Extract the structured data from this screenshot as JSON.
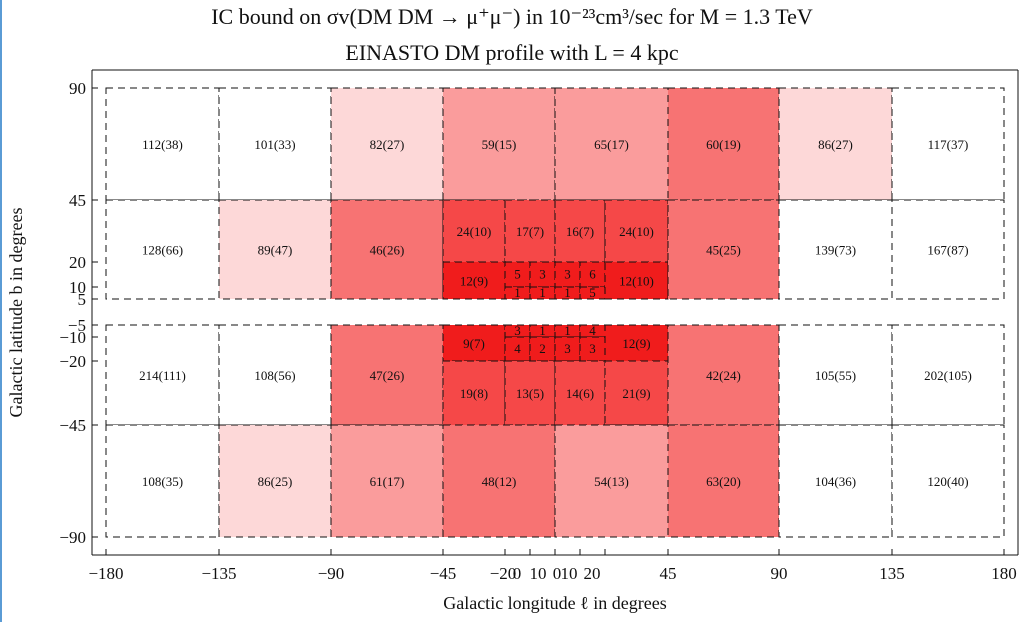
{
  "chart_data": {
    "type": "heatmap",
    "title": "IC bound on σv(DM DM → μ⁺μ⁻) in 10⁻²³cm³/sec for M = 1.3 TeV",
    "subtitle": "EINASTO DM profile with L = 4 kpc",
    "xlabel": "Galactic longitude ℓ in degrees",
    "ylabel": "Galactic latitude b in degrees",
    "x_ticks": [
      "−180",
      "−135",
      "−90",
      "−45",
      "−20",
      "0",
      "10",
      "0",
      "10",
      "20",
      "45",
      "90",
      "135",
      "180"
    ],
    "y_ticks": [
      "90",
      "45",
      "20",
      "10",
      "5",
      "−5",
      "−10",
      "−20",
      "−45",
      "−90"
    ],
    "colors": {
      "level0": "#ffffff",
      "level1": "#fdd8d8",
      "level2": "#fa9c9c",
      "level3": "#f77373",
      "level4": "#f54848",
      "level5": "#f01c1c",
      "grid": "#111111"
    },
    "cells": [
      {
        "l": [
          -180,
          -135
        ],
        "b": [
          45,
          90
        ],
        "label": "112(38)",
        "level": 0
      },
      {
        "l": [
          -135,
          -90
        ],
        "b": [
          45,
          90
        ],
        "label": "101(33)",
        "level": 0
      },
      {
        "l": [
          -90,
          -45
        ],
        "b": [
          45,
          90
        ],
        "label": "82(27)",
        "level": 1
      },
      {
        "l": [
          -45,
          0
        ],
        "b": [
          45,
          90
        ],
        "label": "59(15)",
        "level": 2
      },
      {
        "l": [
          0,
          45
        ],
        "b": [
          45,
          90
        ],
        "label": "65(17)",
        "level": 2
      },
      {
        "l": [
          45,
          90
        ],
        "b": [
          45,
          90
        ],
        "label": "60(19)",
        "level": 3
      },
      {
        "l": [
          90,
          135
        ],
        "b": [
          45,
          90
        ],
        "label": "86(27)",
        "level": 1
      },
      {
        "l": [
          135,
          180
        ],
        "b": [
          45,
          90
        ],
        "label": "117(37)",
        "level": 0
      },
      {
        "l": [
          -180,
          -135
        ],
        "b": [
          5,
          45
        ],
        "label": "128(66)",
        "level": 0
      },
      {
        "l": [
          -135,
          -90
        ],
        "b": [
          5,
          45
        ],
        "label": "89(47)",
        "level": 1
      },
      {
        "l": [
          -90,
          -45
        ],
        "b": [
          5,
          45
        ],
        "label": "46(26)",
        "level": 3
      },
      {
        "l": [
          -45,
          -20
        ],
        "b": [
          20,
          45
        ],
        "label": "24(10)",
        "level": 4
      },
      {
        "l": [
          -20,
          0
        ],
        "b": [
          20,
          45
        ],
        "label": "17(7)",
        "level": 4
      },
      {
        "l": [
          0,
          20
        ],
        "b": [
          20,
          45
        ],
        "label": "16(7)",
        "level": 4
      },
      {
        "l": [
          20,
          45
        ],
        "b": [
          20,
          45
        ],
        "label": "24(10)",
        "level": 4
      },
      {
        "l": [
          -45,
          -20
        ],
        "b": [
          5,
          20
        ],
        "label": "12(9)",
        "level": 5
      },
      {
        "l": [
          -20,
          -10
        ],
        "b": [
          10,
          20
        ],
        "label": "5",
        "level": 5
      },
      {
        "l": [
          -10,
          0
        ],
        "b": [
          10,
          20
        ],
        "label": "3",
        "level": 5
      },
      {
        "l": [
          0,
          10
        ],
        "b": [
          10,
          20
        ],
        "label": "3",
        "level": 5
      },
      {
        "l": [
          10,
          20
        ],
        "b": [
          10,
          20
        ],
        "label": "6",
        "level": 5
      },
      {
        "l": [
          -20,
          -10
        ],
        "b": [
          5,
          10
        ],
        "label": "1",
        "level": 5
      },
      {
        "l": [
          -10,
          0
        ],
        "b": [
          5,
          10
        ],
        "label": "1",
        "level": 5
      },
      {
        "l": [
          0,
          10
        ],
        "b": [
          5,
          10
        ],
        "label": "1",
        "level": 5
      },
      {
        "l": [
          10,
          20
        ],
        "b": [
          5,
          10
        ],
        "label": "5",
        "level": 5
      },
      {
        "l": [
          20,
          45
        ],
        "b": [
          5,
          20
        ],
        "label": "12(10)",
        "level": 5
      },
      {
        "l": [
          45,
          90
        ],
        "b": [
          5,
          45
        ],
        "label": "45(25)",
        "level": 3
      },
      {
        "l": [
          90,
          135
        ],
        "b": [
          5,
          45
        ],
        "label": "139(73)",
        "level": 0
      },
      {
        "l": [
          135,
          180
        ],
        "b": [
          5,
          45
        ],
        "label": "167(87)",
        "level": 0
      },
      {
        "l": [
          -180,
          -135
        ],
        "b": [
          -45,
          -5
        ],
        "label": "214(111)",
        "level": 0
      },
      {
        "l": [
          -135,
          -90
        ],
        "b": [
          -45,
          -5
        ],
        "label": "108(56)",
        "level": 0
      },
      {
        "l": [
          -90,
          -45
        ],
        "b": [
          -45,
          -5
        ],
        "label": "47(26)",
        "level": 3
      },
      {
        "l": [
          -45,
          -20
        ],
        "b": [
          -20,
          -5
        ],
        "label": "9(7)",
        "level": 5
      },
      {
        "l": [
          -20,
          -10
        ],
        "b": [
          -10,
          -5
        ],
        "label": "3",
        "level": 5
      },
      {
        "l": [
          -10,
          0
        ],
        "b": [
          -10,
          -5
        ],
        "label": "1",
        "level": 5
      },
      {
        "l": [
          0,
          10
        ],
        "b": [
          -10,
          -5
        ],
        "label": "1",
        "level": 5
      },
      {
        "l": [
          10,
          20
        ],
        "b": [
          -10,
          -5
        ],
        "label": "4",
        "level": 5
      },
      {
        "l": [
          -20,
          -10
        ],
        "b": [
          -20,
          -10
        ],
        "label": "4",
        "level": 5
      },
      {
        "l": [
          -10,
          0
        ],
        "b": [
          -20,
          -10
        ],
        "label": "2",
        "level": 5
      },
      {
        "l": [
          0,
          10
        ],
        "b": [
          -20,
          -10
        ],
        "label": "3",
        "level": 5
      },
      {
        "l": [
          10,
          20
        ],
        "b": [
          -20,
          -10
        ],
        "label": "3",
        "level": 5
      },
      {
        "l": [
          20,
          45
        ],
        "b": [
          -20,
          -5
        ],
        "label": "12(9)",
        "level": 5
      },
      {
        "l": [
          -45,
          -20
        ],
        "b": [
          -45,
          -20
        ],
        "label": "19(8)",
        "level": 4
      },
      {
        "l": [
          -20,
          0
        ],
        "b": [
          -45,
          -20
        ],
        "label": "13(5)",
        "level": 4
      },
      {
        "l": [
          0,
          20
        ],
        "b": [
          -45,
          -20
        ],
        "label": "14(6)",
        "level": 4
      },
      {
        "l": [
          20,
          45
        ],
        "b": [
          -45,
          -20
        ],
        "label": "21(9)",
        "level": 4
      },
      {
        "l": [
          45,
          90
        ],
        "b": [
          -45,
          -5
        ],
        "label": "42(24)",
        "level": 3
      },
      {
        "l": [
          90,
          135
        ],
        "b": [
          -45,
          -5
        ],
        "label": "105(55)",
        "level": 0
      },
      {
        "l": [
          135,
          180
        ],
        "b": [
          -45,
          -5
        ],
        "label": "202(105)",
        "level": 0
      },
      {
        "l": [
          -180,
          -135
        ],
        "b": [
          -90,
          -45
        ],
        "label": "108(35)",
        "level": 0
      },
      {
        "l": [
          -135,
          -90
        ],
        "b": [
          -90,
          -45
        ],
        "label": "86(25)",
        "level": 1
      },
      {
        "l": [
          -90,
          -45
        ],
        "b": [
          -90,
          -45
        ],
        "label": "61(17)",
        "level": 2
      },
      {
        "l": [
          -45,
          0
        ],
        "b": [
          -90,
          -45
        ],
        "label": "48(12)",
        "level": 3
      },
      {
        "l": [
          0,
          45
        ],
        "b": [
          -90,
          -45
        ],
        "label": "54(13)",
        "level": 2
      },
      {
        "l": [
          45,
          90
        ],
        "b": [
          -90,
          -45
        ],
        "label": "63(20)",
        "level": 3
      },
      {
        "l": [
          90,
          135
        ],
        "b": [
          -90,
          -45
        ],
        "label": "104(36)",
        "level": 0
      },
      {
        "l": [
          135,
          180
        ],
        "b": [
          -90,
          -45
        ],
        "label": "120(40)",
        "level": 0
      }
    ]
  }
}
